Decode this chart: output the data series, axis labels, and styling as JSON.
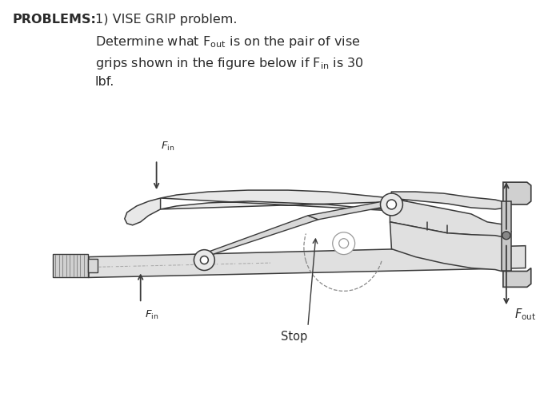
{
  "title_left": "PROBLEMS:",
  "title_right": "1) VISE GRIP problem.",
  "bg_color": "#ffffff",
  "text_color": "#2a2a2a",
  "edge_color": "#3a3a3a",
  "fill_color": "#f0f0f0",
  "dark_fill": "#c8c8c8",
  "figsize": [
    7.0,
    4.97
  ],
  "dpi": 100,
  "label_stop": "Stop",
  "label_fin": "F",
  "label_fin_sub": "in",
  "label_fout": "F",
  "label_fout_sub": "out"
}
